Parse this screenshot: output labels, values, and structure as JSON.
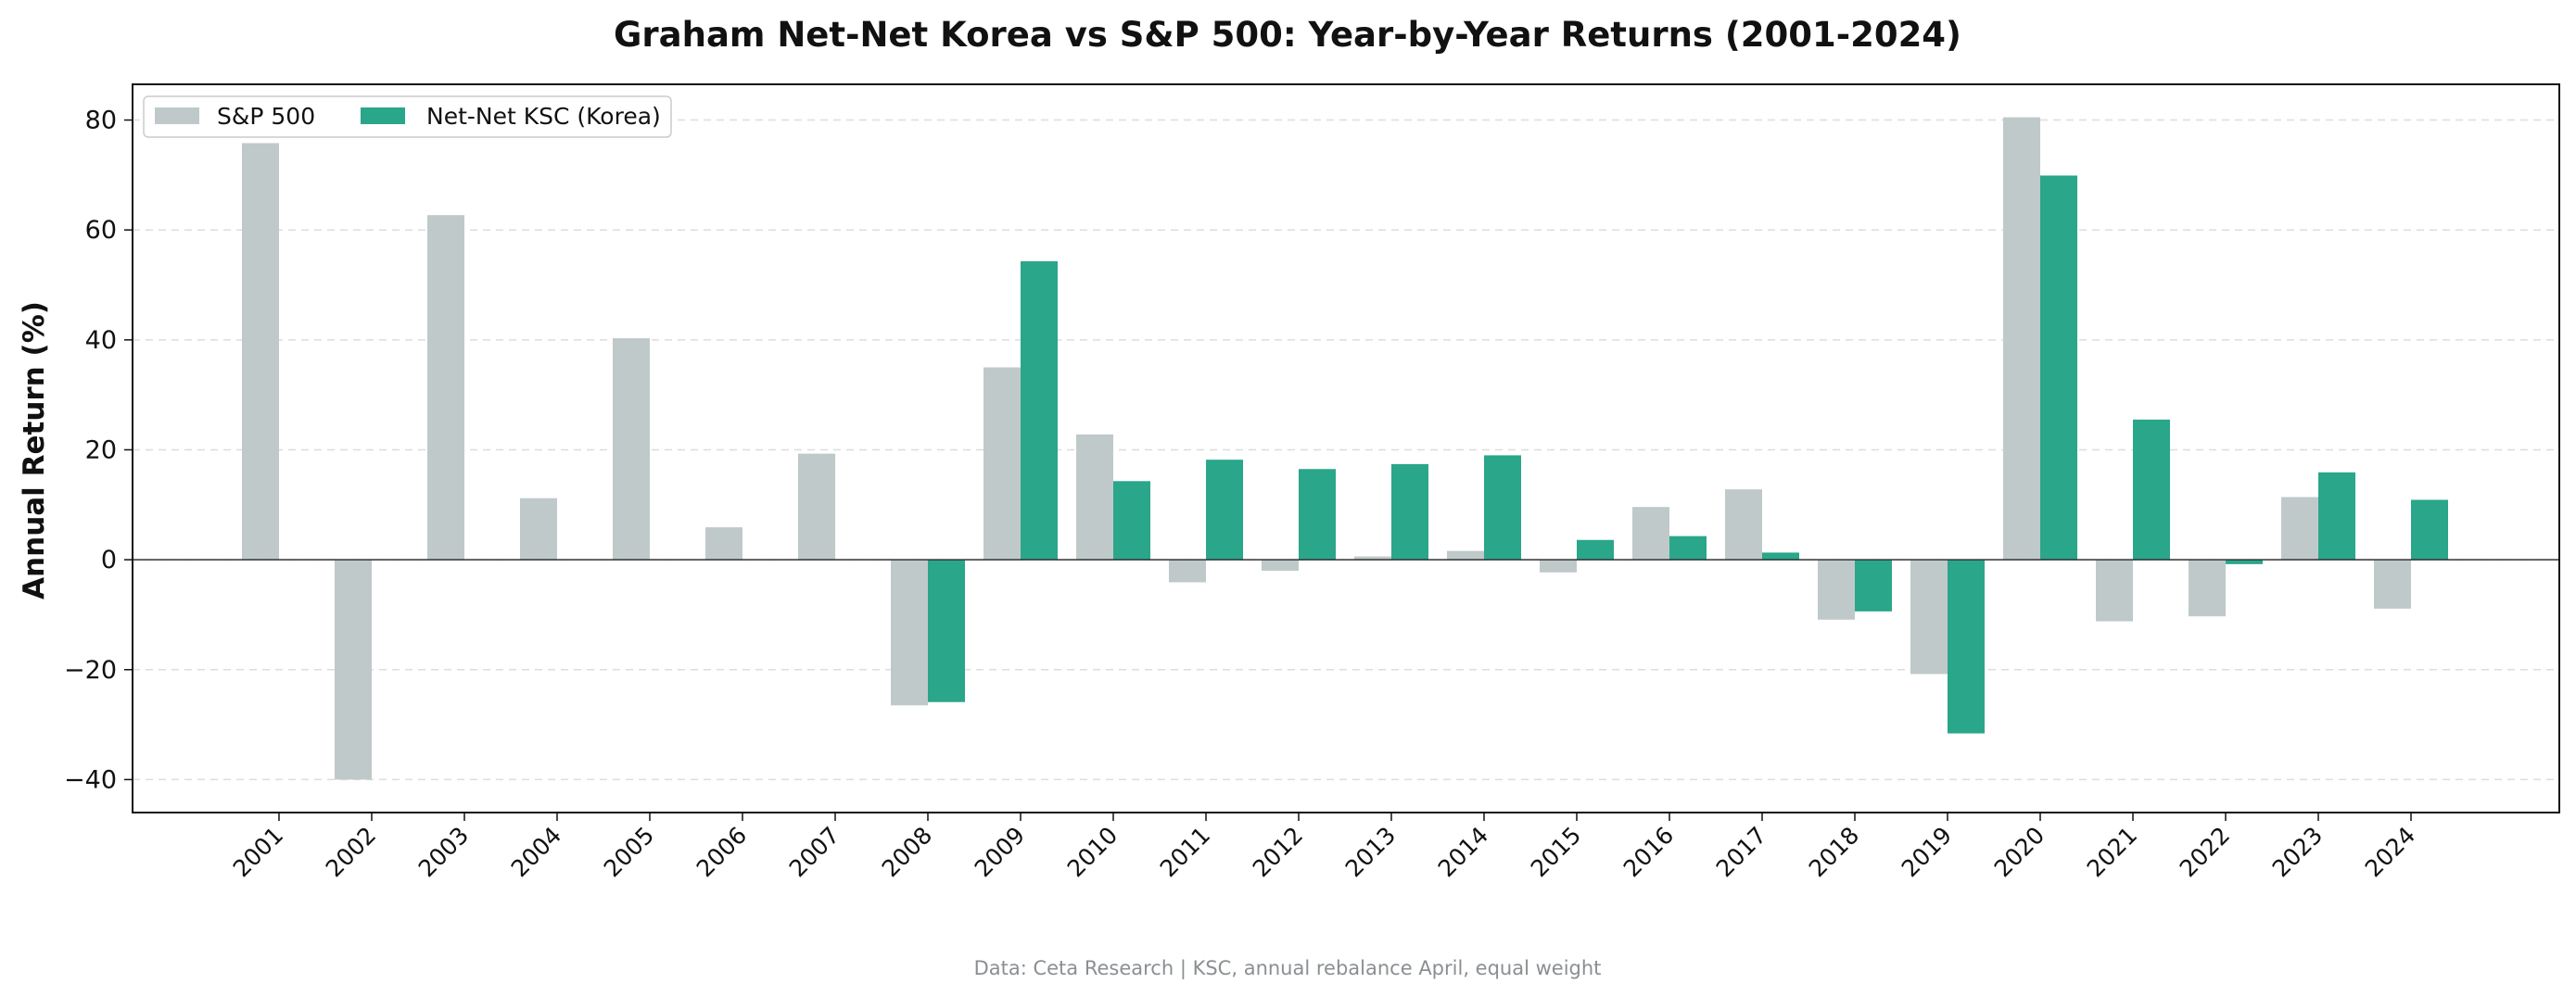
{
  "chart_data": {
    "type": "bar",
    "title": "Graham Net-Net Korea vs S&P 500: Year-by-Year Returns (2001-2024)",
    "xlabel": "",
    "ylabel": "Annual Return (%)",
    "ylim": [
      -46,
      86.5
    ],
    "yticks": [
      -40,
      -20,
      0,
      20,
      40,
      60,
      80
    ],
    "ytick_labels": [
      "−40",
      "−20",
      "0",
      "20",
      "40",
      "60",
      "80"
    ],
    "grid": "y dashed",
    "legend_position": "upper-left",
    "categories": [
      "2001",
      "2002",
      "2003",
      "2004",
      "2005",
      "2006",
      "2007",
      "2008",
      "2009",
      "2010",
      "2011",
      "2012",
      "2013",
      "2014",
      "2015",
      "2016",
      "2017",
      "2018",
      "2019",
      "2020",
      "2021",
      "2022",
      "2023",
      "2024"
    ],
    "series": [
      {
        "name": "S&P 500",
        "color": "#bfc9c9",
        "values": [
          75.8,
          -40.0,
          62.7,
          11.2,
          40.3,
          5.9,
          19.3,
          -26.5,
          35.0,
          22.8,
          -4.1,
          -2.0,
          0.6,
          1.6,
          -2.3,
          9.6,
          12.8,
          -10.9,
          -20.8,
          80.5,
          -11.2,
          -10.3,
          11.4,
          -8.9
        ]
      },
      {
        "name": "Net-Net KSC (Korea)",
        "color": "#2aa68a",
        "values": [
          null,
          null,
          null,
          null,
          null,
          null,
          null,
          -25.9,
          54.3,
          14.3,
          18.2,
          16.5,
          17.4,
          19.0,
          3.6,
          4.3,
          1.3,
          -9.4,
          -31.6,
          69.9,
          25.5,
          -0.8,
          15.9,
          10.9
        ]
      }
    ],
    "source_note": "Data: Ceta Research | KSC, annual rebalance April, equal weight"
  }
}
